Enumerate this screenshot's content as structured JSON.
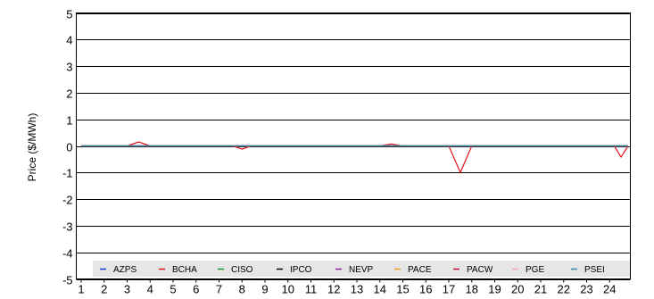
{
  "chart_data": {
    "type": "line",
    "title": "",
    "xlabel": "",
    "ylabel": "Price ($/MWh)",
    "ylim": [
      -5,
      5
    ],
    "y_ticks": [
      "5",
      "4",
      "3",
      "2",
      "1",
      "0",
      "-1",
      "-2",
      "-3",
      "-4",
      "-5"
    ],
    "x_ticks": [
      "1",
      "2",
      "3",
      "4",
      "5",
      "6",
      "7",
      "8",
      "9",
      "10",
      "11",
      "12",
      "13",
      "14",
      "15",
      "16",
      "17",
      "18",
      "19",
      "20",
      "21",
      "22",
      "23",
      "24"
    ],
    "grid": "horizontal",
    "legend_position": "bottom",
    "series": [
      {
        "name": "AZPS",
        "color": "#1f3fd6",
        "points": [
          [
            1,
            0
          ],
          [
            24.8,
            0
          ]
        ]
      },
      {
        "name": "BCHA",
        "color": "#e0141e",
        "points": [
          [
            1,
            0
          ],
          [
            3,
            0
          ],
          [
            3.5,
            0.15
          ],
          [
            4,
            0
          ],
          [
            7.6,
            0
          ],
          [
            8,
            -0.12
          ],
          [
            8.4,
            0
          ],
          [
            14,
            0
          ],
          [
            14.5,
            0.07
          ],
          [
            15,
            0
          ],
          [
            17,
            0
          ],
          [
            17.5,
            -1.0
          ],
          [
            18,
            0
          ],
          [
            24.2,
            0
          ],
          [
            24.5,
            -0.42
          ],
          [
            24.8,
            0
          ]
        ]
      },
      {
        "name": "CISO",
        "color": "#1a9a2a",
        "points": [
          [
            1,
            0
          ],
          [
            24.8,
            0
          ]
        ]
      },
      {
        "name": "IPCO",
        "color": "#000000",
        "points": [
          [
            1,
            0
          ],
          [
            24.8,
            0
          ]
        ]
      },
      {
        "name": "NEVP",
        "color": "#9a1fb4",
        "points": [
          [
            1,
            0
          ],
          [
            24.8,
            0
          ]
        ]
      },
      {
        "name": "PACE",
        "color": "#f2a020",
        "points": [
          [
            1,
            0
          ],
          [
            24.8,
            0
          ]
        ]
      },
      {
        "name": "PACW",
        "color": "#c8102e",
        "points": [
          [
            1,
            0
          ],
          [
            24.8,
            0
          ]
        ]
      },
      {
        "name": "PGE",
        "color": "#f6a6b8",
        "points": [
          [
            1,
            0
          ],
          [
            24.8,
            0
          ]
        ]
      },
      {
        "name": "PSEI",
        "color": "#2a8fa8",
        "points": [
          [
            1,
            0
          ],
          [
            24.8,
            0
          ]
        ]
      }
    ]
  }
}
